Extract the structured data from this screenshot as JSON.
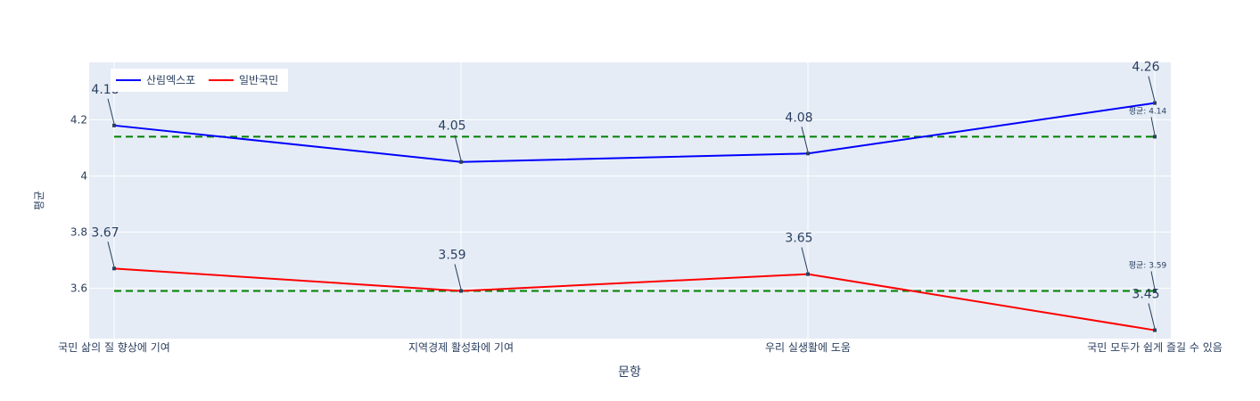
{
  "chart_data": {
    "type": "line",
    "title": "",
    "xlabel": "문항",
    "ylabel": "평균",
    "categories": [
      "국민 삶의 질 향상에 기여",
      "지역경제 활성화에 기여",
      "우리 실생활에 도움",
      "국민 모두가 쉽게 즐길 수 있음"
    ],
    "series": [
      {
        "name": "산림엑스포",
        "color": "#0000ff",
        "values": [
          4.18,
          4.05,
          4.08,
          4.26
        ],
        "labels": [
          "4.18",
          "4.05",
          "4.08",
          "4.26"
        ]
      },
      {
        "name": "일반국민",
        "color": "#ff0000",
        "values": [
          3.67,
          3.59,
          3.65,
          3.45
        ],
        "labels": [
          "3.67",
          "3.59",
          "3.65",
          "3.45"
        ]
      }
    ],
    "averages": [
      {
        "value": 4.14,
        "label": "평균: 4.14",
        "color": "#008000"
      },
      {
        "value": 3.59,
        "label": "평균: 3.59",
        "color": "#008000"
      }
    ],
    "yticks": [
      3.6,
      3.8,
      4,
      4.2
    ],
    "ytick_labels": [
      "3.6",
      "3.8",
      "4",
      "4.2"
    ],
    "ylim": [
      3.42,
      4.405
    ],
    "grid": true,
    "legend_position": "top-left",
    "plot_bg": "#e5ecf6"
  }
}
